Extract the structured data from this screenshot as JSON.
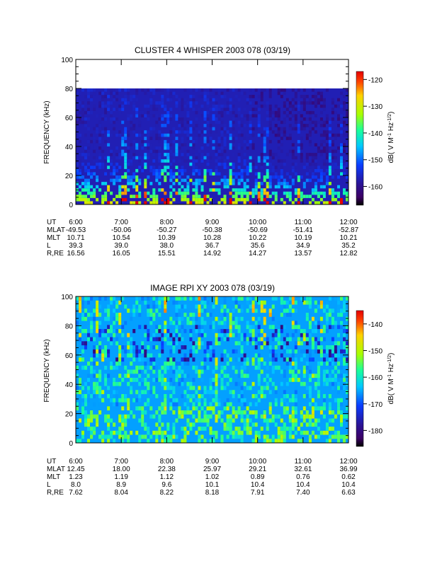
{
  "chart_data": [
    {
      "type": "heatmap",
      "title": "CLUSTER 4 WHISPER 2003 078 (03/19)",
      "ylabel": "FREQUENCY (kHz)",
      "ylim": [
        0,
        100
      ],
      "data_ylim": [
        0,
        80
      ],
      "yticks": [
        "0",
        "20",
        "40",
        "60",
        "80",
        "100"
      ],
      "colorbar": {
        "label": "dB( V M",
        "label_sup": "-1",
        "label_mid": " Hz",
        "label_sup2": "-1/2",
        "label_end": ")",
        "range": [
          -167,
          -117
        ],
        "ticks": [
          "-120",
          "-130",
          "-140",
          "-150",
          "-160"
        ],
        "tick_values": [
          -120,
          -130,
          -140,
          -150,
          -160
        ]
      },
      "x": [
        "6:00",
        "7:00",
        "8:00",
        "9:00",
        "10:00",
        "11:00",
        "12:00"
      ],
      "ephemeris": [
        {
          "name": "UT",
          "values": [
            "6:00",
            "7:00",
            "8:00",
            "9:00",
            "10:00",
            "11:00",
            "12:00"
          ]
        },
        {
          "name": "MLAT",
          "values": [
            "-49.53",
            "-50.06",
            "-50.27",
            "-50.38",
            "-50.69",
            "-51.41",
            "-52.87"
          ]
        },
        {
          "name": "MLT",
          "values": [
            "10.71",
            "10.54",
            "10.39",
            "10.28",
            "10.22",
            "10.19",
            "10.21"
          ]
        },
        {
          "name": "L",
          "values": [
            "39.3",
            "39.0",
            "38.0",
            "36.7",
            "35.6",
            "34.9",
            "35.2"
          ]
        },
        {
          "name": "R,RE",
          "values": [
            "16.56",
            "16.05",
            "15.51",
            "14.92",
            "14.27",
            "13.57",
            "12.82"
          ]
        }
      ]
    },
    {
      "type": "heatmap",
      "title": "IMAGE RPI XY 2003 078 (03/19)",
      "ylabel": "FREQUENCY (kHz)",
      "ylim": [
        0,
        100
      ],
      "data_ylim": [
        0,
        100
      ],
      "yticks": [
        "0",
        "20",
        "40",
        "60",
        "80",
        "100"
      ],
      "colorbar": {
        "label": "dB( V M",
        "label_sup": "-1",
        "label_mid": " Hz",
        "label_sup2": "-1/2",
        "label_end": ")",
        "range": [
          -186,
          -135
        ],
        "ticks": [
          "-140",
          "-150",
          "-160",
          "-170",
          "-180"
        ],
        "tick_values": [
          -140,
          -150,
          -160,
          -170,
          -180
        ]
      },
      "x": [
        "6:00",
        "7:00",
        "8:00",
        "9:00",
        "10:00",
        "11:00",
        "12:00"
      ],
      "ephemeris": [
        {
          "name": "UT",
          "values": [
            "6:00",
            "7:00",
            "8:00",
            "9:00",
            "10:00",
            "11:00",
            "12:00"
          ]
        },
        {
          "name": "MLAT",
          "values": [
            "12.45",
            "18.00",
            "22.38",
            "25.97",
            "29.21",
            "32.61",
            "36.99"
          ]
        },
        {
          "name": "MLT",
          "values": [
            "1.23",
            "1.19",
            "1.12",
            "1.02",
            "0.89",
            "0.76",
            "0.62"
          ]
        },
        {
          "name": "L",
          "values": [
            "8.0",
            "8.9",
            "9.6",
            "10.1",
            "10.4",
            "10.4",
            "10.4"
          ]
        },
        {
          "name": "R,RE",
          "values": [
            "7.62",
            "8.04",
            "8.22",
            "8.18",
            "7.91",
            "7.40",
            "6.63"
          ]
        }
      ]
    }
  ]
}
